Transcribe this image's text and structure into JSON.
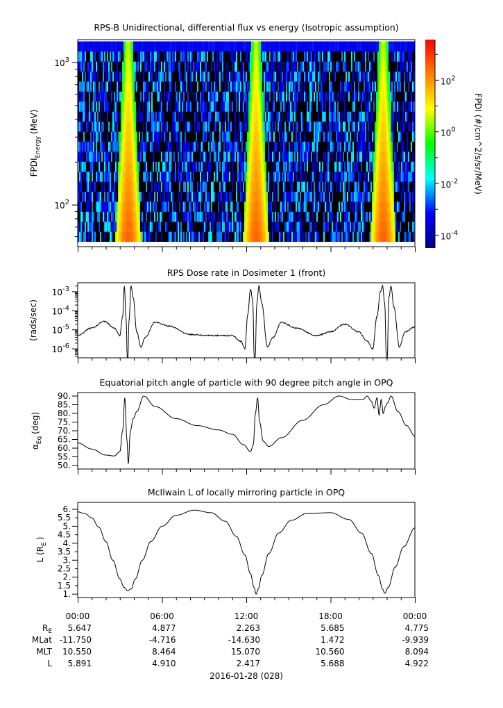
{
  "chart_data": [
    {
      "type": "heatmap",
      "title": "RPS-B  Unidirectional, differential flux vs energy (Isotropic assumption)",
      "ylabel_main": "FPDI",
      "ylabel_sub": "Energy",
      "ylabel_unit": "(MeV)",
      "yscale": "log",
      "ylim": [
        51,
        1450
      ],
      "yticks": [
        {
          "value": 100,
          "base": "10",
          "exp": "2"
        },
        {
          "value": 1000,
          "base": "10",
          "exp": "3"
        }
      ],
      "energy_range_mev": [
        60,
        1300
      ],
      "energy_bins": 20,
      "peak_times_hours": [
        3.6,
        12.7,
        21.75
      ],
      "peak_log_flux_low_energy": 2.5,
      "peak_log_flux_high_energy": 0.6,
      "background_log_flux_range": [
        -3.8,
        -1.8
      ],
      "colorbar": {
        "label": "FPDI (#/cm^2/s/sr/MeV)",
        "scale": "log",
        "lim_log10": [
          -4.5,
          3.57
        ],
        "ticks": [
          {
            "value": 2,
            "base": "10",
            "exp": "2"
          },
          {
            "value": 0,
            "base": "10",
            "exp": "0"
          },
          {
            "value": -2,
            "base": "10",
            "exp": "-2"
          },
          {
            "value": -4,
            "base": "10",
            "exp": "-4"
          }
        ],
        "colors": [
          "#00007f",
          "#0000ff",
          "#00ffff",
          "#00ff00",
          "#ffff00",
          "#ff7f00",
          "#ff0000"
        ]
      }
    },
    {
      "type": "line",
      "title": "RPS  Dose rate in Dosimeter 1 (front)",
      "ylabel": "(rads/sec)",
      "yscale": "log",
      "ylim_log10": [
        -6.47,
        -2.53
      ],
      "yticks": [
        {
          "value": -3,
          "base": "10",
          "exp": "-3"
        },
        {
          "value": -4,
          "base": "10",
          "exp": "-4"
        },
        {
          "value": -5,
          "base": "10",
          "exp": "-5"
        },
        {
          "value": -6,
          "base": "10",
          "exp": "-6"
        }
      ],
      "x_hours": [
        0,
        1,
        1.9,
        2.6,
        3.0,
        3.2,
        3.32,
        3.45,
        3.55,
        3.65,
        3.8,
        3.95,
        4.2,
        4.5,
        4.8,
        5.5,
        6.5,
        8,
        9.5,
        11,
        11.6,
        11.9,
        12.1,
        12.3,
        12.45,
        12.6,
        12.75,
        12.9,
        13.1,
        13.5,
        13.9,
        14.5,
        15.5,
        17,
        18,
        19,
        20,
        20.6,
        21.0,
        21.3,
        21.55,
        21.7,
        21.85,
        22.0,
        22.15,
        22.3,
        22.5,
        22.9,
        23.3,
        24
      ],
      "y_log10": [
        -5.3,
        -4.9,
        -4.55,
        -4.9,
        -5.3,
        -4.3,
        -2.7,
        -4.5,
        -7.5,
        -4.5,
        -2.7,
        -3.3,
        -5.1,
        -5.9,
        -5.4,
        -4.6,
        -4.8,
        -5.25,
        -5.3,
        -5.3,
        -5.6,
        -6.0,
        -4.2,
        -2.85,
        -3.4,
        -7.5,
        -3.6,
        -2.7,
        -3.6,
        -5.9,
        -5.4,
        -4.6,
        -4.9,
        -5.3,
        -5.1,
        -4.7,
        -5.1,
        -5.6,
        -6.0,
        -4.3,
        -3.0,
        -2.7,
        -3.6,
        -7.5,
        -3.3,
        -2.7,
        -3.8,
        -5.9,
        -5.1,
        -4.85
      ]
    },
    {
      "type": "line",
      "title": "Equatorial pitch angle of particle with 90 degree pitch angle in OPQ",
      "ylabel_main": "α",
      "ylabel_sub": "Eq",
      "ylabel_unit": "(deg)",
      "ylim": [
        48,
        92
      ],
      "yticks": [
        "50.",
        "55.",
        "60.",
        "65.",
        "70.",
        "75.",
        "80.",
        "85.",
        "90."
      ],
      "x_hours": [
        0,
        1,
        2,
        2.6,
        3.0,
        3.2,
        3.35,
        3.5,
        3.6,
        3.75,
        3.95,
        4.2,
        4.7,
        5.5,
        7,
        8.5,
        10,
        11,
        11.8,
        12.3,
        12.5,
        12.65,
        12.8,
        12.95,
        13.2,
        13.6,
        14.5,
        16,
        17.5,
        18.6,
        19.5,
        20.3,
        20.6,
        20.9,
        21.1,
        21.3,
        21.45,
        21.6,
        21.75,
        21.9,
        22.05,
        22.3,
        22.8,
        23.4,
        24
      ],
      "y": [
        63,
        59.5,
        56,
        55.5,
        58,
        70,
        89,
        65,
        51,
        70,
        77,
        81,
        90,
        84,
        77,
        73,
        70.5,
        68,
        62,
        58,
        62,
        80,
        89,
        75,
        64,
        61,
        66,
        76,
        85,
        90,
        88,
        88,
        90,
        87,
        83,
        89,
        79,
        88,
        80,
        84,
        86,
        90,
        81,
        73,
        67
      ]
    },
    {
      "type": "line",
      "title": "McIlwain L of locally mirroring particle in OPQ",
      "ylabel_main": "L (R",
      "ylabel_sub": "E",
      "ylabel_unit": ")",
      "ylim": [
        0.8,
        6.41
      ],
      "yticks": [
        "1.",
        "1.5",
        "2.",
        "2.5",
        "3.",
        "3.5",
        "4.",
        "4.5",
        "5.",
        "5.5",
        "6."
      ],
      "x_hours": [
        0,
        0.5,
        1,
        1.5,
        2,
        2.5,
        3,
        3.3,
        3.55,
        3.8,
        4.1,
        4.6,
        5.2,
        6,
        7,
        8.3,
        9.5,
        10.5,
        11.3,
        11.9,
        12.3,
        12.55,
        12.7,
        12.85,
        13.1,
        13.6,
        14.3,
        15.2,
        16.3,
        18,
        19.3,
        20.2,
        20.9,
        21.4,
        21.7,
        21.85,
        22.1,
        22.6,
        23.2,
        24
      ],
      "y": [
        5.85,
        5.75,
        5.5,
        4.95,
        4.1,
        3.0,
        1.9,
        1.4,
        1.2,
        1.3,
        1.9,
        3.0,
        4.1,
        5.0,
        5.65,
        5.95,
        5.8,
        5.3,
        4.4,
        3.3,
        2.2,
        1.4,
        1.0,
        1.3,
        2.1,
        3.4,
        4.6,
        5.35,
        5.75,
        5.8,
        5.4,
        4.6,
        3.4,
        2.1,
        1.3,
        1.05,
        1.4,
        2.6,
        3.8,
        4.9
      ]
    }
  ],
  "x_axis": {
    "range_hours": [
      0,
      24
    ],
    "tick_labels": [
      "00:00",
      "06:00",
      "12:00",
      "18:00",
      "00:00"
    ],
    "date_label": "2016-01-28 (028)"
  },
  "ephemeris": [
    {
      "label_main": "R",
      "label_sub": "E",
      "values": [
        "5.647",
        "4.877",
        "2.263",
        "5.685",
        "4.775"
      ]
    },
    {
      "label_main": "MLat",
      "label_sub": "",
      "values": [
        "-11.750",
        "-4.716",
        "-14.630",
        "1.472",
        "-9.939"
      ]
    },
    {
      "label_main": "MLT",
      "label_sub": "",
      "values": [
        "10.550",
        "8.464",
        "15.070",
        "10.560",
        "8.094"
      ]
    },
    {
      "label_main": "L",
      "label_sub": "",
      "values": [
        "5.891",
        "4.910",
        "2.417",
        "5.688",
        "4.922"
      ]
    }
  ]
}
